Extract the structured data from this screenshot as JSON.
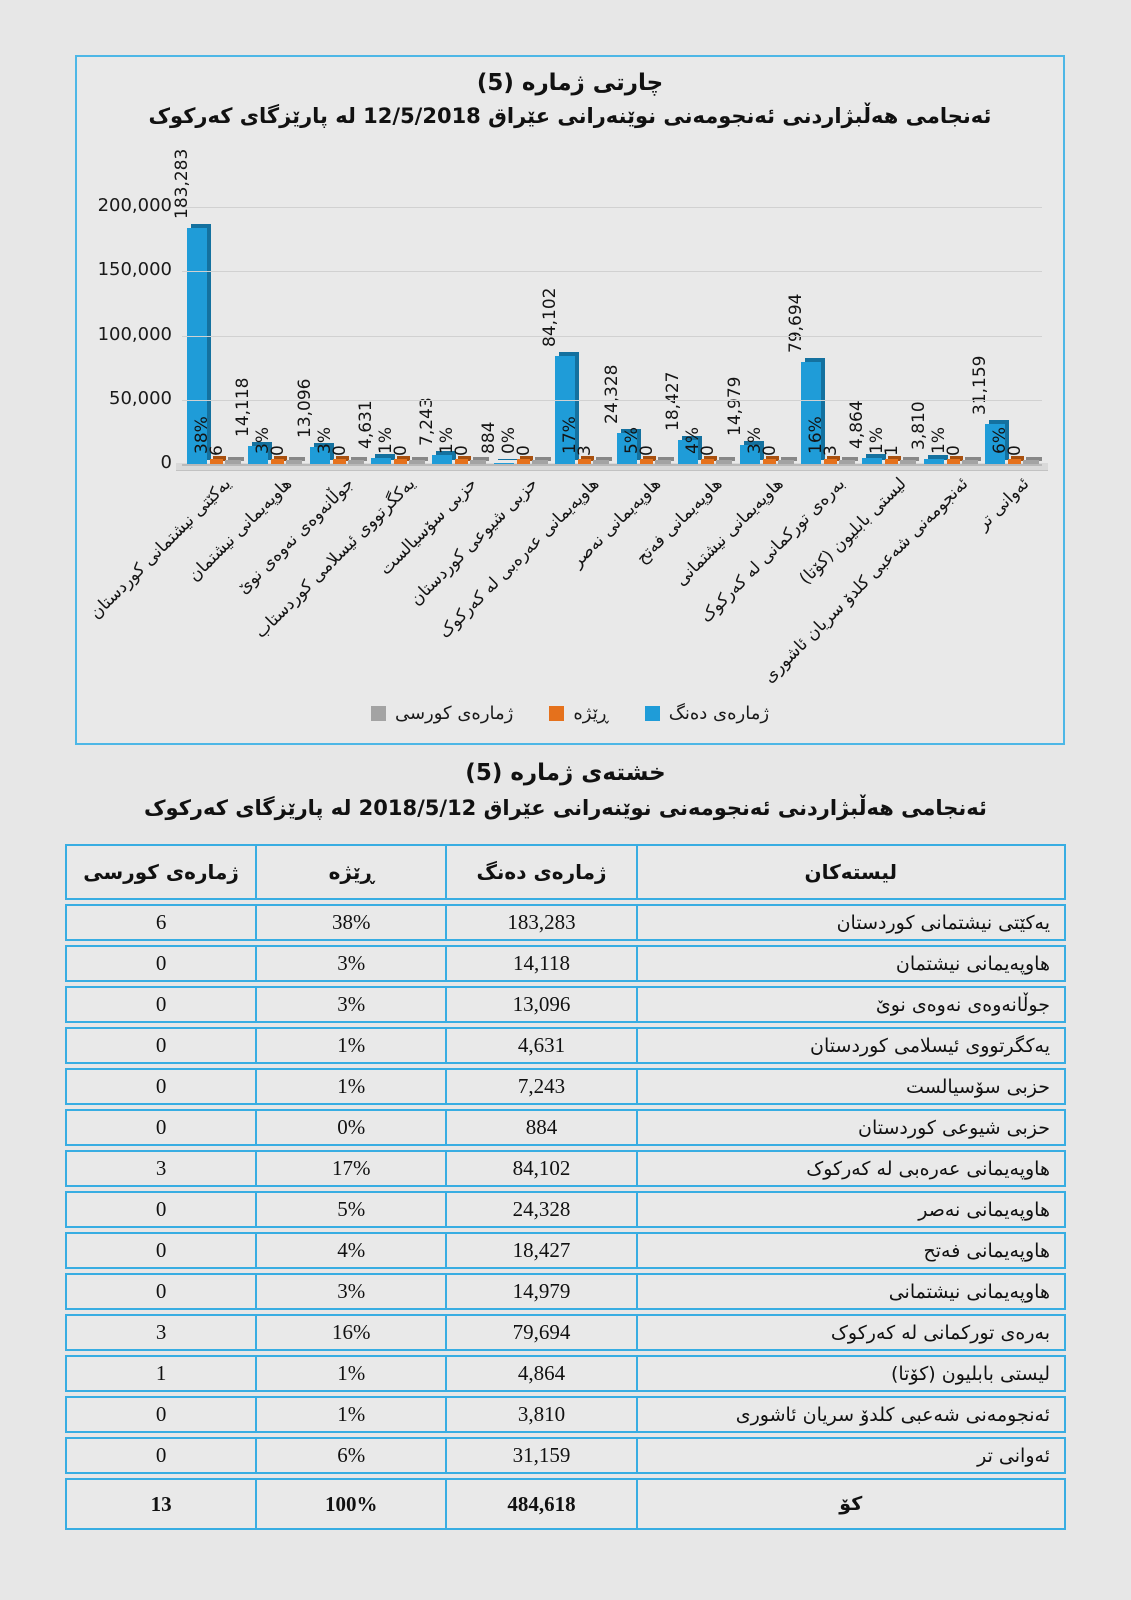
{
  "chart": {
    "title": "چارتی ژماره (5)",
    "subtitle": "ئەنجامی هەڵبژاردنی ئەنجومەنی نوێنەرانی عێراق  12/5/2018 له پارێزگای کەرکوک",
    "y_ticks": [
      "200,000",
      "150,000",
      "100,000",
      "50,000",
      "0"
    ],
    "legend": [
      {
        "label": "ژمارەی کورسی",
        "color": "#a3a3a3"
      },
      {
        "label": "ڕێژە",
        "color": "#e5711c"
      },
      {
        "label": "ژمارەی دەنگ",
        "color": "#1f9cd8"
      }
    ],
    "colors": {
      "votes": "#1f9cd8",
      "percent": "#e5711c",
      "seats": "#a3a3a3"
    },
    "chart_data": {
      "type": "bar",
      "title": "چارتی ژماره (5) — ئەنجامی هەڵبژاردنی ئەنجومەنی نوێنەرانی عێراق 12/5/2018 له پارێزگای کەرکوک",
      "categories": [
        "یەکێتی نیشتمانی کوردستان",
        "هاوپەیمانی نیشتمان",
        "جوڵانەوەی نەوەی نوێ",
        "یەکگرتووی ئیسلامی کوردستاب",
        "حزبی سۆسیالست",
        "حزبی شیوعی کوردستان",
        "هاوپەیمانی عەرەبی له کەرکوک",
        "هاوپەیمانی نەصر",
        "هاوپەیمانی فەتح",
        "هاوپەیمانی نیشتمانی",
        "بەرەی تورکمانی له کەرکوک",
        "لیستی بابلیون (کۆتا)",
        "ئەنجومەنی شەعبی کلدۆ سریان ئاشوری",
        "ئەوانی تر"
      ],
      "series": [
        {
          "name": "ژمارەی دەنگ",
          "values": [
            183283,
            14118,
            13096,
            4631,
            7243,
            884,
            84102,
            24328,
            18427,
            14979,
            79694,
            4864,
            3810,
            31159
          ]
        },
        {
          "name": "ڕێژە",
          "unit": "%",
          "values": [
            38,
            3,
            3,
            1,
            1,
            0,
            17,
            5,
            4,
            3,
            16,
            1,
            1,
            6
          ]
        },
        {
          "name": "ژمارەی کورسی",
          "values": [
            6,
            0,
            0,
            0,
            0,
            0,
            3,
            0,
            0,
            0,
            3,
            1,
            0,
            0
          ]
        }
      ],
      "value_labels": [
        "183,283",
        "14,118",
        "13,096",
        "4,631",
        "7,243",
        "884",
        "84,102",
        "24,328",
        "18,427",
        "14,979",
        "79,694",
        "4,864",
        "3,810",
        "31,159"
      ],
      "percent_labels": [
        "38%",
        "3%",
        "3%",
        "1%",
        "1%",
        "0%",
        "17%",
        "5%",
        "4%",
        "3%",
        "16%",
        "1%",
        "1%",
        "6%"
      ],
      "seat_labels": [
        "6",
        "0",
        "0",
        "0",
        "0",
        "0",
        "3",
        "0",
        "0",
        "0",
        "3",
        "1",
        "0",
        "0"
      ],
      "ylim": [
        0,
        200000
      ],
      "grid": true,
      "legend_position": "bottom"
    }
  },
  "table": {
    "title": "خشتەی ژماره (5)",
    "subtitle": "ئەنجامی هەڵبژاردنی ئەنجومەنی نوێنەرانی عێراق  2018/5/12 له پارێزگای کەرکوک",
    "headers": {
      "lists": "لیستەکان",
      "votes": "ژمارەی دەنگ",
      "percent": "ڕێژە",
      "seats": "ژمارەی کورسی"
    },
    "rows": [
      {
        "list": "یەکێتی نیشتمانی کوردستان",
        "votes": "183,283",
        "percent": "38%",
        "seats": "6"
      },
      {
        "list": "هاوپەیمانی نیشتمان",
        "votes": "14,118",
        "percent": "3%",
        "seats": "0"
      },
      {
        "list": "جوڵانەوەی نەوەی نوێ",
        "votes": "13,096",
        "percent": "3%",
        "seats": "0"
      },
      {
        "list": "یەکگرتووی ئیسلامی کوردستان",
        "votes": "4,631",
        "percent": "1%",
        "seats": "0"
      },
      {
        "list": "حزبی سۆسیالست",
        "votes": "7,243",
        "percent": "1%",
        "seats": "0"
      },
      {
        "list": "حزبی شیوعی کوردستان",
        "votes": "884",
        "percent": "0%",
        "seats": "0"
      },
      {
        "list": "هاوپەیمانی عەرەبی له کەرکوک",
        "votes": "84,102",
        "percent": "17%",
        "seats": "3"
      },
      {
        "list": "هاوپەیمانی نەصر",
        "votes": "24,328",
        "percent": "5%",
        "seats": "0"
      },
      {
        "list": "هاوپەیمانی فەتح",
        "votes": "18,427",
        "percent": "4%",
        "seats": "0"
      },
      {
        "list": "هاوپەیمانی نیشتمانی",
        "votes": "14,979",
        "percent": "3%",
        "seats": "0"
      },
      {
        "list": "بەرەی تورکمانی له کەرکوک",
        "votes": "79,694",
        "percent": "16%",
        "seats": "3"
      },
      {
        "list": "لیستی بابلیون (کۆتا)",
        "votes": "4,864",
        "percent": "1%",
        "seats": "1"
      },
      {
        "list": "ئەنجومەنی شەعبی کلدۆ سریان ئاشوری",
        "votes": "3,810",
        "percent": "1%",
        "seats": "0"
      },
      {
        "list": "ئەوانی تر",
        "votes": "31,159",
        "percent": "6%",
        "seats": "0"
      }
    ],
    "total": {
      "list": "کۆ",
      "votes": "484,618",
      "percent": "100%",
      "seats": "13"
    }
  }
}
